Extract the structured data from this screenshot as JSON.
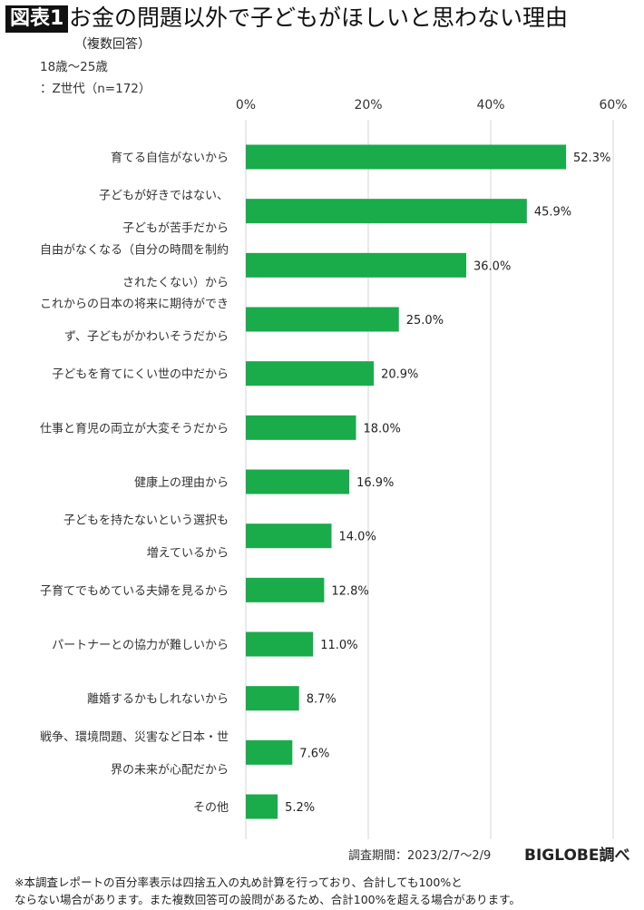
{
  "header": {
    "badge": "図表1",
    "title": "お金の問題以外で子どもがほしいと思わない理由",
    "subtitle": "（複数回答）",
    "sample_line1": "18歳～25歳",
    "sample_line2": "：Z世代（n=172）"
  },
  "footer": {
    "period": "調査期間：2023/2/7～2/9",
    "source": "BIGLOBE調べ",
    "note_line1": "※本調査レポートの百分率表示は四捨五入の丸め計算を行っており、合計しても100%と",
    "note_line2": "ならない場合があります。また複数回答可の設問があるため、合計100%を超える場合があります。"
  },
  "chart_data": {
    "type": "bar",
    "orientation": "horizontal",
    "xlim": [
      0,
      60
    ],
    "ticks": [
      0,
      20,
      40,
      60
    ],
    "tick_labels": [
      "0%",
      "20%",
      "40%",
      "60%"
    ],
    "grid": true,
    "bar_color": "#1aab4b",
    "categories": [
      [
        "育てる自信がないから"
      ],
      [
        "子どもが好きではない、",
        "子どもが苦手だから"
      ],
      [
        "自由がなくなる（自分の時間を制約",
        "されたくない）から"
      ],
      [
        "これからの日本の将来に期待ができ",
        "ず、子どもがかわいそうだから"
      ],
      [
        "子どもを育てにくい世の中だから"
      ],
      [
        "仕事と育児の両立が大変そうだから"
      ],
      [
        "健康上の理由から"
      ],
      [
        "子どもを持たないという選択も",
        "増えているから"
      ],
      [
        "子育てでもめている夫婦を見るから"
      ],
      [
        "パートナーとの協力が難しいから"
      ],
      [
        "離婚するかもしれないから"
      ],
      [
        "戦争、環境問題、災害など日本・世",
        "界の未来が心配だから"
      ],
      [
        "その他"
      ]
    ],
    "values": [
      52.3,
      45.9,
      36.0,
      25.0,
      20.9,
      18.0,
      16.9,
      14.0,
      12.8,
      11.0,
      8.7,
      7.6,
      5.2
    ],
    "data_labels": [
      "52.3%",
      "45.9%",
      "36.0%",
      "25.0%",
      "20.9%",
      "18.0%",
      "16.9%",
      "14.0%",
      "12.8%",
      "11.0%",
      "8.7%",
      "7.6%",
      "5.2%"
    ]
  }
}
